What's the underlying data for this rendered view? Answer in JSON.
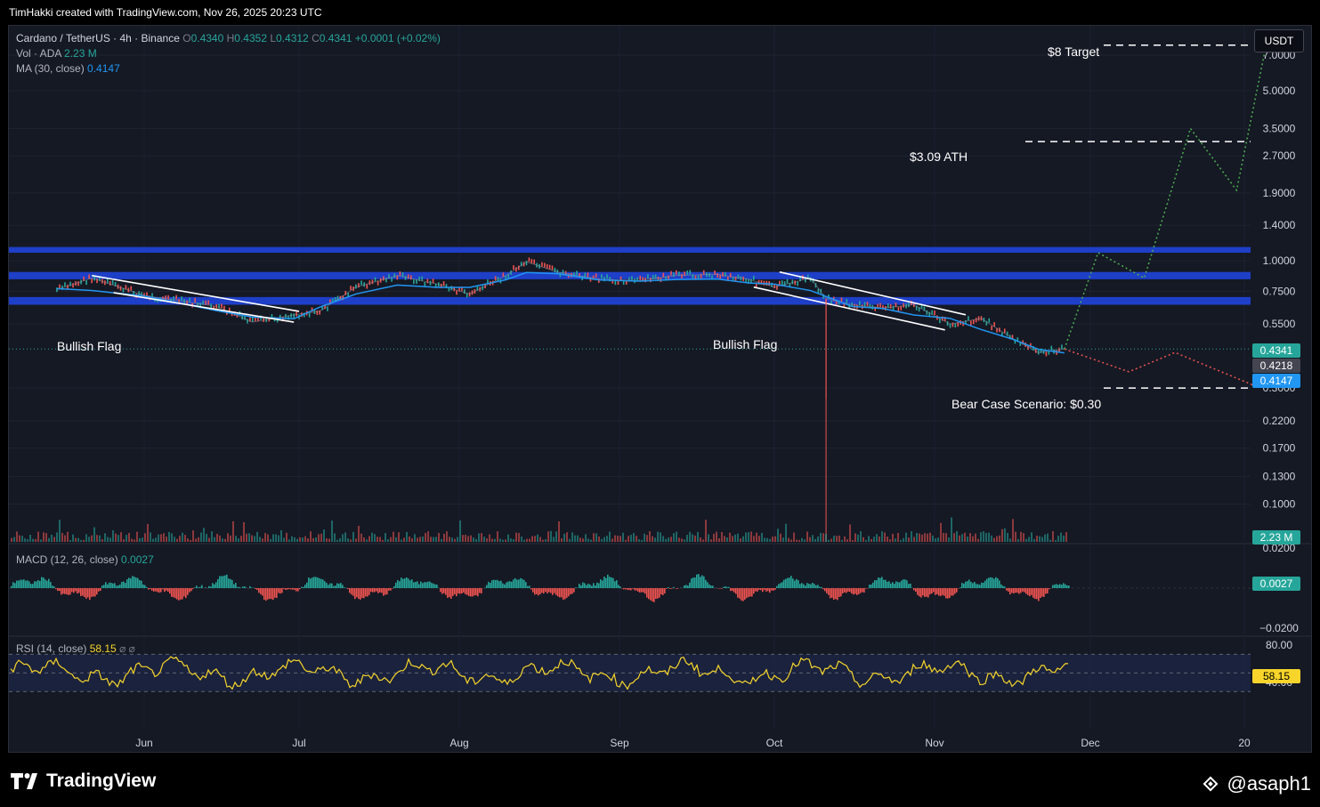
{
  "header": {
    "attribution": "TimHakki created with TradingView.com, Nov 26, 2025 20:23 UTC"
  },
  "legend": {
    "symbol": "Cardano / TetherUS · 4h · Binance",
    "o_label": "O",
    "o": "0.4340",
    "h_label": "H",
    "h": "0.4352",
    "l_label": "L",
    "l": "0.4312",
    "c_label": "C",
    "c": "0.4341",
    "change": "+0.0001 (+0.02%)",
    "vol_label": "Vol · ADA",
    "vol": "2.23 M",
    "ma_label": "MA (30, close)",
    "ma": "0.4147",
    "macd_label": "MACD (12, 26, close)",
    "macd": "0.0027",
    "rsi_label": "RSI (14, close)",
    "rsi": "58.15",
    "rsi_icons": "⌀ ⌀"
  },
  "currency": "USDT",
  "annotations": {
    "target": "$8 Target",
    "ath": "$3.09 ATH",
    "bear": "Bear Case Scenario: $0.30",
    "flag1": "Bullish Flag",
    "flag2": "Bullish Flag"
  },
  "price_tags": {
    "close": "0.4341",
    "last": "0.4218",
    "ma": "0.4147",
    "volume": "2.23 M",
    "macd": "0.0027",
    "rsi": "58.15"
  },
  "footer": {
    "brand": "TradingView",
    "user": "@asaph1"
  },
  "colors": {
    "up": "#26a69a",
    "down": "#ef5350",
    "ma": "#2196f3",
    "band": "#1e3fc7",
    "rsi": "#f7d52a",
    "bull_path": "#4caf50",
    "bear_path": "#ef5350"
  },
  "chart_data": {
    "type": "line",
    "title": "Cardano / TetherUS · 4h · Binance",
    "scale": "log",
    "ylim": [
      0.07,
      8.5
    ],
    "y_ticks": [
      "7.0000",
      "5.0000",
      "3.5000",
      "2.7000",
      "1.9000",
      "1.4000",
      "1.0000",
      "0.7500",
      "0.5500",
      "0.3000",
      "0.2200",
      "0.1700",
      "0.1300",
      "0.1000"
    ],
    "x_ticks": [
      "Jun",
      "Jul",
      "Aug",
      "Sep",
      "Oct",
      "Nov",
      "Dec",
      "20"
    ],
    "series": [
      {
        "x": [
          "May 12",
          "May 20",
          "Jun 1",
          "Jun 15",
          "Jun 22",
          "Jun 30",
          "Jul 5",
          "Jul 12",
          "Jul 20",
          "Jul 28",
          "Aug 3",
          "Aug 10",
          "Aug 14",
          "Aug 20",
          "Aug 28",
          "Sep 5",
          "Sep 12",
          "Sep 20",
          "Sep 26",
          "Oct 1",
          "Oct 8",
          "Oct 11",
          "Oct 16",
          "Oct 22",
          "Oct 28",
          "Nov 4",
          "Nov 10",
          "Nov 16",
          "Nov 21",
          "Nov 26"
        ],
        "values": [
          0.76,
          0.85,
          0.72,
          0.65,
          0.56,
          0.6,
          0.62,
          0.78,
          0.87,
          0.8,
          0.73,
          0.87,
          0.99,
          0.9,
          0.84,
          0.83,
          0.87,
          0.88,
          0.84,
          0.78,
          0.85,
          0.7,
          0.66,
          0.64,
          0.66,
          0.55,
          0.58,
          0.48,
          0.42,
          0.434
        ]
      },
      {
        "x": [
          "Nov 26",
          "Dec 2",
          "Dec 8",
          "Dec 14",
          "Dec 20",
          "Dec 24"
        ],
        "values": [
          0.434,
          1.08,
          0.85,
          3.5,
          1.95,
          8.2
        ]
      },
      {
        "x": [
          "Nov 26",
          "Dec 6",
          "Dec 12",
          "Dec 22",
          "Dec 24"
        ],
        "values": [
          0.434,
          0.35,
          0.42,
          0.31,
          0.33
        ]
      }
    ],
    "levels": [
      {
        "label": "$8 Target",
        "value": 7.7
      },
      {
        "label": "$3.09 ATH",
        "value": 3.09
      },
      {
        "label": "Bear Case Scenario: $0.30",
        "value": 0.3
      }
    ],
    "resistance_bands": [
      [
        0.66,
        0.71
      ],
      [
        0.84,
        0.9
      ],
      [
        1.08,
        1.14
      ]
    ],
    "ma": {
      "period": 30,
      "last": 0.4147
    },
    "macd": {
      "last": 0.0027,
      "y_ticks": [
        "0.0200",
        "−0.0200"
      ]
    },
    "rsi": {
      "last": 58.15,
      "y_ticks": [
        "80.00",
        "40.00"
      ],
      "bands": [
        70,
        30
      ]
    },
    "grid": true
  }
}
